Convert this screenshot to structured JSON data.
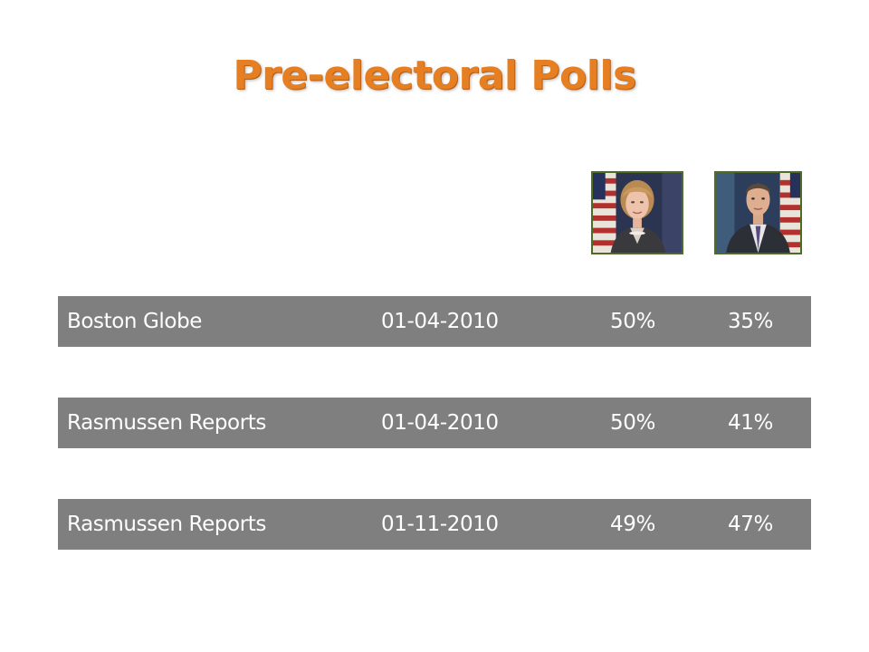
{
  "title": "Pre-electoral Polls",
  "colors": {
    "title": "#e67e22",
    "row_background": "#7f7f7f",
    "row_text": "#ffffff",
    "portrait_border": "#4e6b27"
  },
  "portraits": [
    {
      "icon": "candidate-portrait-woman"
    },
    {
      "icon": "candidate-portrait-man"
    }
  ],
  "polls": [
    {
      "source": "Boston Globe",
      "date": "01-04-2010",
      "candidate_1": "50%",
      "candidate_2": "35%"
    },
    {
      "source": "Rasmussen Reports",
      "date": "01-04-2010",
      "candidate_1": "50%",
      "candidate_2": "41%"
    },
    {
      "source": "Rasmussen Reports",
      "date": "01-11-2010",
      "candidate_1": "49%",
      "candidate_2": "47%"
    }
  ]
}
